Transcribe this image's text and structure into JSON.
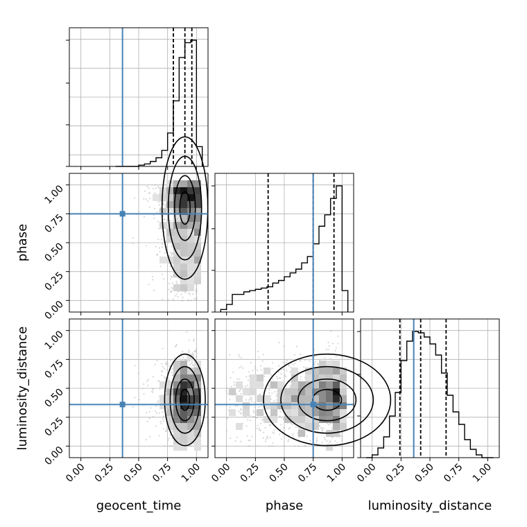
{
  "chart_data": {
    "type": "corner",
    "parameters": [
      "geocent_time",
      "phase",
      "luminosity_distance"
    ],
    "axis_labels": [
      "geocent_time",
      "phase",
      "luminosity_distance"
    ],
    "range": [
      -0.1,
      1.1
    ],
    "ticks": [
      0.0,
      0.25,
      0.5,
      0.75,
      1.0
    ],
    "tick_labels": [
      "0.00",
      "0.25",
      "0.50",
      "0.75",
      "1.00"
    ],
    "grid": true,
    "colors": {
      "truth": "#4682b4",
      "line": "#000000",
      "grid": "#b0b0b0",
      "points": "#b4b4b4"
    },
    "truths": [
      0.36,
      0.75,
      0.36
    ],
    "quantiles": [
      [
        0.8,
        0.9,
        0.96
      ],
      [
        0.36,
        0.75,
        0.93
      ],
      [
        0.24,
        0.42,
        0.64
      ]
    ],
    "histograms": [
      {
        "parameter": "geocent_time",
        "bin_edges": [
          0.3,
          0.35,
          0.4,
          0.45,
          0.5,
          0.55,
          0.6,
          0.65,
          0.7,
          0.75,
          0.8,
          0.85,
          0.9,
          0.95,
          1.0,
          1.05
        ],
        "counts": [
          0.0,
          0.0,
          0.0,
          0.0,
          0.01,
          0.02,
          0.04,
          0.07,
          0.13,
          0.27,
          0.53,
          0.88,
          1.0,
          1.02,
          0.16
        ]
      },
      {
        "parameter": "phase",
        "bin_edges": [
          -0.05,
          0.0,
          0.05,
          0.1,
          0.15,
          0.2,
          0.25,
          0.3,
          0.35,
          0.4,
          0.45,
          0.5,
          0.55,
          0.6,
          0.65,
          0.7,
          0.75,
          0.8,
          0.85,
          0.9,
          0.95,
          1.0,
          1.05
        ],
        "counts": [
          0.02,
          0.06,
          0.14,
          0.14,
          0.16,
          0.17,
          0.18,
          0.19,
          0.2,
          0.23,
          0.25,
          0.28,
          0.31,
          0.34,
          0.39,
          0.44,
          0.54,
          0.68,
          0.77,
          0.9,
          1.0,
          0.17
        ]
      },
      {
        "parameter": "luminosity_distance",
        "bin_edges": [
          -0.05,
          0.0,
          0.05,
          0.1,
          0.15,
          0.2,
          0.25,
          0.3,
          0.35,
          0.4,
          0.45,
          0.5,
          0.55,
          0.6,
          0.65,
          0.7,
          0.75,
          0.8,
          0.85,
          0.9,
          0.95,
          1.0,
          1.05
        ],
        "counts": [
          0.0,
          0.02,
          0.07,
          0.15,
          0.3,
          0.47,
          0.7,
          0.84,
          0.91,
          0.9,
          0.87,
          0.82,
          0.74,
          0.61,
          0.45,
          0.33,
          0.24,
          0.13,
          0.06,
          0.02,
          0.0,
          0.0
        ]
      }
    ],
    "scatter_2d": [
      {
        "x_param": "geocent_time",
        "y_param": "phase",
        "x_center": 0.9,
        "x_spread": 0.09,
        "x_range": [
          0.45,
          1.0
        ],
        "y_distribution": "skewed-high"
      },
      {
        "x_param": "geocent_time",
        "y_param": "luminosity_distance",
        "x_center": 0.9,
        "x_spread": 0.08,
        "x_range": [
          0.45,
          1.0
        ],
        "y_center": 0.4,
        "y_spread": 0.18,
        "y_range": [
          0.0,
          1.0
        ]
      },
      {
        "x_param": "phase",
        "y_param": "luminosity_distance",
        "x_distribution": "skewed-high",
        "x_range": [
          0.0,
          1.0
        ],
        "y_center": 0.4,
        "y_spread": 0.18,
        "y_range": [
          0.0,
          1.0
        ]
      }
    ]
  }
}
